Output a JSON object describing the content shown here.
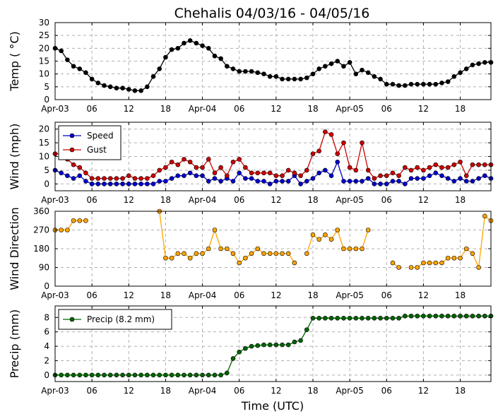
{
  "title": "Chehalis 04/03/16 - 04/05/16",
  "xlabel": "Time (UTC)",
  "x_ticks": [
    "Apr-03",
    "06",
    "12",
    "18",
    "Apr-04",
    "06",
    "12",
    "18",
    "Apr-05",
    "06",
    "12",
    "18"
  ],
  "x_tick_hours": [
    0,
    6,
    12,
    18,
    24,
    30,
    36,
    42,
    48,
    54,
    60,
    66
  ],
  "x_range_hours": [
    0,
    71
  ],
  "chart_data": [
    {
      "type": "line",
      "id": "temp",
      "ylabel": "Temp ( °C)",
      "ylim": [
        0,
        30
      ],
      "y_ticks": [
        0,
        5,
        10,
        15,
        20,
        25,
        30
      ],
      "grid": true,
      "x_unit": "hours since Apr-03 00 UTC",
      "series": [
        {
          "color": "#000000",
          "x": [
            0,
            1,
            2,
            3,
            4,
            5,
            6,
            7,
            8,
            9,
            10,
            11,
            12,
            13,
            14,
            15,
            16,
            17,
            18,
            19,
            20,
            21,
            22,
            23,
            24,
            25,
            26,
            27,
            28,
            29,
            30,
            31,
            32,
            33,
            34,
            35,
            36,
            37,
            38,
            39,
            40,
            41,
            42,
            43,
            44,
            45,
            46,
            47,
            48,
            49,
            50,
            51,
            52,
            53,
            54,
            55,
            56,
            57,
            58,
            59,
            60,
            61,
            62,
            63,
            64,
            65,
            66,
            67,
            68,
            69,
            70,
            71
          ],
          "values": [
            20,
            19,
            15.5,
            13,
            12,
            10.5,
            8,
            6.5,
            5.5,
            5,
            4.5,
            4.5,
            4,
            3.5,
            3.5,
            5,
            9,
            12,
            16.5,
            19.5,
            20,
            22,
            23,
            22,
            21,
            20,
            17,
            16,
            13,
            12,
            11,
            11,
            11,
            10.5,
            10,
            9,
            9,
            8,
            8,
            8,
            8,
            8.5,
            10,
            12,
            13,
            14,
            15,
            13,
            14.5,
            10,
            11.5,
            10.5,
            9,
            8,
            6,
            6,
            5.5,
            5.5,
            6,
            6,
            6,
            6,
            6,
            6.5,
            7,
            9,
            10.5,
            12,
            13.5,
            14,
            14.5,
            14.5
          ]
        }
      ]
    },
    {
      "type": "line",
      "id": "wind",
      "ylabel": "Wind (mph)",
      "ylim": [
        -2.5,
        22.5
      ],
      "y_ticks": [
        0,
        5,
        10,
        15,
        20
      ],
      "grid": true,
      "legend_position": "top-left",
      "x_unit": "hours since Apr-03 00 UTC",
      "series": [
        {
          "name": "Speed",
          "color": "#0000cc",
          "x": [
            0,
            1,
            2,
            3,
            4,
            5,
            6,
            7,
            8,
            9,
            10,
            11,
            12,
            13,
            14,
            15,
            16,
            17,
            18,
            19,
            20,
            21,
            22,
            23,
            24,
            25,
            26,
            27,
            28,
            29,
            30,
            31,
            32,
            33,
            34,
            35,
            36,
            37,
            38,
            39,
            40,
            41,
            42,
            43,
            44,
            45,
            46,
            47,
            48,
            49,
            50,
            51,
            52,
            53,
            54,
            55,
            56,
            57,
            58,
            59,
            60,
            61,
            62,
            63,
            64,
            65,
            66,
            67,
            68,
            69,
            70,
            71
          ],
          "values": [
            5,
            4,
            3,
            2,
            3,
            1,
            0,
            0,
            0,
            0,
            0,
            0,
            0,
            0,
            0,
            0,
            0,
            1,
            1,
            2,
            3,
            3,
            4,
            3,
            3,
            1,
            2,
            1,
            2,
            1,
            4,
            2,
            2,
            1,
            1,
            0,
            1,
            1,
            1,
            3,
            0,
            1,
            2,
            4,
            5,
            3,
            8,
            1,
            1,
            1,
            1,
            2,
            0,
            0,
            0,
            1,
            1,
            0,
            2,
            2,
            2,
            3,
            4,
            3,
            2,
            1,
            2,
            1,
            1,
            2,
            3,
            2
          ]
        },
        {
          "name": "Gust",
          "color": "#cc0000",
          "x": [
            0,
            1,
            2,
            3,
            4,
            5,
            6,
            7,
            8,
            9,
            10,
            11,
            12,
            13,
            14,
            15,
            16,
            17,
            18,
            19,
            20,
            21,
            22,
            23,
            24,
            25,
            26,
            27,
            28,
            29,
            30,
            31,
            32,
            33,
            34,
            35,
            36,
            37,
            38,
            39,
            40,
            41,
            42,
            43,
            44,
            45,
            46,
            47,
            48,
            49,
            50,
            51,
            52,
            53,
            54,
            55,
            56,
            57,
            58,
            59,
            60,
            61,
            62,
            63,
            64,
            65,
            66,
            67,
            68,
            69,
            70,
            71
          ],
          "values": [
            11,
            11,
            9,
            7,
            6,
            4,
            2,
            2,
            2,
            2,
            2,
            2,
            3,
            2,
            2,
            2,
            3,
            5,
            6,
            8,
            7,
            9,
            8,
            6,
            6,
            9,
            4,
            6,
            3,
            8,
            9,
            6,
            4,
            4,
            4,
            4,
            3,
            3,
            5,
            4,
            3,
            5,
            11,
            12,
            19,
            18,
            11,
            15,
            6,
            5,
            15,
            5,
            2,
            3,
            3,
            4,
            3,
            6,
            5,
            6,
            5,
            6,
            7,
            6,
            6,
            7,
            8,
            3,
            7,
            7,
            7,
            7
          ]
        }
      ]
    },
    {
      "type": "scatter",
      "id": "direction",
      "ylabel": "Wind Direction",
      "ylim": [
        0,
        360
      ],
      "y_ticks": [
        0,
        90,
        180,
        270,
        360
      ],
      "grid": true,
      "x_unit": "hours since Apr-03 00 UTC",
      "series": [
        {
          "color": "#ffa500",
          "segments": [
            {
              "x": [
                0,
                1,
                2,
                3,
                4,
                5
              ],
              "values": [
                270,
                270,
                270,
                315,
                315,
                315
              ]
            },
            {
              "x": [
                17,
                18,
                19,
                20,
                21,
                22,
                23,
                24,
                25,
                26,
                27,
                28,
                29,
                30,
                31,
                32,
                33,
                34,
                35,
                36,
                37,
                38,
                39
              ],
              "values": [
                360,
                135,
                135,
                157,
                157,
                135,
                157,
                157,
                180,
                270,
                180,
                180,
                157,
                112,
                135,
                157,
                180,
                157,
                157,
                157,
                157,
                157,
                112
              ]
            },
            {
              "x": [
                41,
                42,
                43,
                44,
                45,
                46,
                47,
                48,
                49,
                50,
                51
              ],
              "values": [
                157,
                247,
                225,
                247,
                225,
                270,
                180,
                180,
                180,
                180,
                270
              ]
            },
            {
              "x": [
                55,
                56
              ],
              "values": [
                112,
                90
              ]
            },
            {
              "x": [
                58,
                59,
                60,
                61,
                62,
                63,
                64,
                65,
                66,
                67,
                68,
                69,
                70,
                71
              ],
              "values": [
                90,
                90,
                112,
                112,
                112,
                112,
                135,
                135,
                135,
                180,
                157,
                90,
                337,
                315
              ]
            }
          ]
        }
      ]
    },
    {
      "type": "line",
      "id": "precip",
      "ylabel": "Precip (mm)",
      "ylim": [
        -0.9,
        9.6
      ],
      "y_ticks": [
        0,
        2,
        4,
        6,
        8
      ],
      "grid": true,
      "legend_position": "top-left",
      "x_unit": "hours since Apr-03 00 UTC",
      "series": [
        {
          "name": "Precip (8.2 mm)",
          "color": "#006400",
          "x": [
            0,
            1,
            2,
            3,
            4,
            5,
            6,
            7,
            8,
            9,
            10,
            11,
            12,
            13,
            14,
            15,
            16,
            17,
            18,
            19,
            20,
            21,
            22,
            23,
            24,
            25,
            26,
            27,
            28,
            29,
            30,
            31,
            32,
            33,
            34,
            35,
            36,
            37,
            38,
            39,
            40,
            41,
            42,
            43,
            44,
            45,
            46,
            47,
            48,
            49,
            50,
            51,
            52,
            53,
            54,
            55,
            56,
            57,
            58,
            59,
            60,
            61,
            62,
            63,
            64,
            65,
            66,
            67,
            68,
            69,
            70,
            71
          ],
          "values": [
            0,
            0,
            0,
            0,
            0,
            0,
            0,
            0,
            0,
            0,
            0,
            0,
            0,
            0,
            0,
            0,
            0,
            0,
            0,
            0,
            0,
            0,
            0,
            0,
            0,
            0,
            0,
            0,
            0.3,
            2.3,
            3.2,
            3.7,
            4.0,
            4.1,
            4.2,
            4.2,
            4.2,
            4.2,
            4.2,
            4.6,
            4.8,
            6.3,
            7.9,
            7.9,
            7.9,
            7.9,
            7.9,
            7.9,
            7.9,
            7.9,
            7.9,
            7.9,
            7.9,
            7.9,
            7.9,
            7.9,
            7.9,
            8.2,
            8.2,
            8.2,
            8.2,
            8.2,
            8.2,
            8.2,
            8.2,
            8.2,
            8.2,
            8.2,
            8.2,
            8.2,
            8.2,
            8.2
          ]
        }
      ]
    }
  ]
}
